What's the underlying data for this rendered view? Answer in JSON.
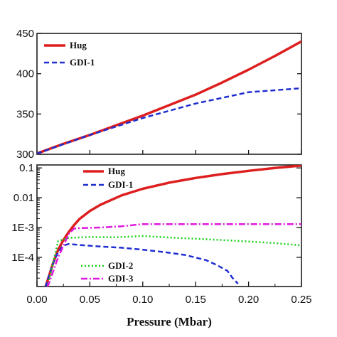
{
  "chart_data": [
    {
      "type": "line",
      "xlim": [
        0.0,
        0.25
      ],
      "ylim": [
        300,
        450
      ],
      "ylabel_visible_fragment": "",
      "yticks": [
        300,
        350,
        400,
        450
      ],
      "ytick_labels": [
        "300",
        "350",
        "400",
        "450"
      ],
      "grid": false,
      "legend_position": "top-left",
      "series": [
        {
          "name": "Hug",
          "color": "#dd1f1f",
          "style": "solid",
          "x": [
            0.0,
            0.025,
            0.05,
            0.075,
            0.1,
            0.125,
            0.15,
            0.175,
            0.2,
            0.225,
            0.25
          ],
          "y": [
            301,
            313,
            324,
            336,
            348,
            361,
            374,
            389,
            405,
            422,
            440
          ]
        },
        {
          "name": "GDI-1",
          "color": "#1f2fd0",
          "style": "dashed",
          "x": [
            0.0,
            0.05,
            0.1,
            0.15,
            0.2,
            0.25
          ],
          "y": [
            301,
            324,
            345,
            363,
            377,
            382
          ]
        }
      ]
    },
    {
      "type": "line",
      "xlim": [
        0.0,
        0.25
      ],
      "ylim_log10": [
        -4.98,
        -0.9
      ],
      "yscale": "log",
      "yticks": [
        0.1,
        0.01,
        0.001,
        0.0001
      ],
      "ytick_labels": [
        "0.1",
        "0.01",
        "1E-3",
        "1E-4"
      ],
      "xticks": [
        0.0,
        0.05,
        0.1,
        0.15,
        0.2,
        0.25
      ],
      "xtick_labels": [
        "0.00",
        "0.05",
        "0.10",
        "0.15",
        "0.20",
        "0.25"
      ],
      "xlabel": "Pressure (Mbar)",
      "grid": false,
      "legend_positions": [
        "top-center",
        "bottom-left"
      ],
      "series": [
        {
          "name": "Hug",
          "color": "#dd1f1f",
          "style": "solid",
          "x": [
            0.008,
            0.015,
            0.02,
            0.025,
            0.03,
            0.035,
            0.04,
            0.05,
            0.06,
            0.08,
            0.1,
            0.125,
            0.15,
            0.175,
            0.2,
            0.225,
            0.25
          ],
          "y": [
            1e-05,
            6e-05,
            0.00018,
            0.00038,
            0.0007,
            0.0012,
            0.0019,
            0.0036,
            0.0058,
            0.012,
            0.02,
            0.032,
            0.046,
            0.062,
            0.08,
            0.1,
            0.12
          ]
        },
        {
          "name": "GDI-1",
          "color": "#1f2fd0",
          "style": "dashed",
          "x": [
            0.008,
            0.015,
            0.02,
            0.025,
            0.03,
            0.04,
            0.06,
            0.08,
            0.1,
            0.12,
            0.14,
            0.16,
            0.17,
            0.18,
            0.185,
            0.19
          ],
          "y": [
            1e-05,
            6e-05,
            0.00015,
            0.00025,
            0.00028,
            0.00026,
            0.00023,
            0.00021,
            0.00018,
            0.00015,
            0.00012,
            8e-05,
            5.5e-05,
            3.5e-05,
            2e-05,
            1.3e-05
          ]
        },
        {
          "name": "GDI-2",
          "color": "#19d019",
          "style": "dotted",
          "x": [
            0.01,
            0.015,
            0.02,
            0.03,
            0.05,
            0.075,
            0.1,
            0.125,
            0.15,
            0.175,
            0.2,
            0.225,
            0.25
          ],
          "y": [
            1e-05,
            6e-05,
            0.00035,
            0.00045,
            0.00048,
            0.00047,
            0.00052,
            0.00046,
            0.00042,
            0.00038,
            0.00034,
            0.0003,
            0.00025
          ]
        },
        {
          "name": "GDI-3",
          "color": "#dd19dd",
          "style": "dashdot",
          "x": [
            0.01,
            0.02,
            0.03,
            0.035,
            0.04,
            0.06,
            0.08,
            0.1,
            0.125,
            0.15,
            0.175,
            0.2,
            0.25
          ],
          "y": [
            1e-05,
            0.0001,
            0.0006,
            0.00092,
            0.00095,
            0.001,
            0.0011,
            0.0013,
            0.0013,
            0.0013,
            0.0013,
            0.0013,
            0.0013
          ]
        }
      ]
    }
  ]
}
